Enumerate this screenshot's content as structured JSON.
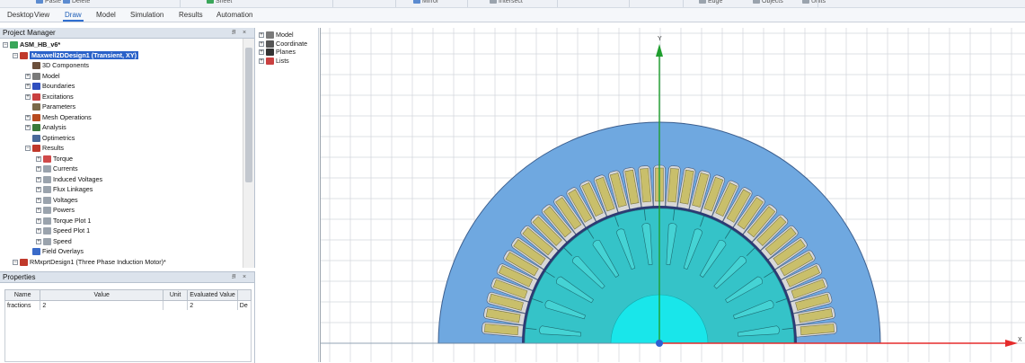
{
  "toolbar": {
    "items": [
      "Paste",
      "Delete",
      "Sheet",
      "Mirror",
      "Intersect",
      "Edge",
      "Objects",
      "Units"
    ]
  },
  "ribbon": {
    "tabs": [
      "Desktop",
      "View",
      "Draw",
      "Model",
      "Simulation",
      "Results",
      "Automation"
    ],
    "active": "Draw"
  },
  "project_manager": {
    "title": "Project Manager",
    "pin": "⭿",
    "close": "×",
    "tree": [
      {
        "label": "ASM_HB_v6*",
        "level": 0,
        "exp": "−",
        "icon": "#3aa65a",
        "bold": true
      },
      {
        "label": "Maxwell2DDesign1 (Transient, XY)",
        "level": 1,
        "exp": "−",
        "icon": "#c0392b",
        "selected": true
      },
      {
        "label": "3D Components",
        "level": 2,
        "icon": "#6b4f3b"
      },
      {
        "label": "Model",
        "level": 2,
        "exp": "+",
        "icon": "#7a7a7a"
      },
      {
        "label": "Boundaries",
        "level": 2,
        "exp": "+",
        "icon": "#2f4fbf"
      },
      {
        "label": "Excitations",
        "level": 2,
        "exp": "+",
        "icon": "#c94040"
      },
      {
        "label": "Parameters",
        "level": 2,
        "icon": "#7a6a4a"
      },
      {
        "label": "Mesh Operations",
        "level": 2,
        "exp": "+",
        "icon": "#b84b20"
      },
      {
        "label": "Analysis",
        "level": 2,
        "exp": "+",
        "icon": "#3a7a3a"
      },
      {
        "label": "Optimetrics",
        "level": 2,
        "icon": "#4a6a9a"
      },
      {
        "label": "Results",
        "level": 2,
        "exp": "−",
        "icon": "#c0392b"
      },
      {
        "label": "Torque",
        "level": 3,
        "exp": "+",
        "icon": "#d04a4a"
      },
      {
        "label": "Currents",
        "level": 3,
        "exp": "+",
        "icon": "#9aa3ad"
      },
      {
        "label": "Induced Voltages",
        "level": 3,
        "exp": "+",
        "icon": "#9aa3ad"
      },
      {
        "label": "Flux Linkages",
        "level": 3,
        "exp": "+",
        "icon": "#9aa3ad"
      },
      {
        "label": "Voltages",
        "level": 3,
        "exp": "+",
        "icon": "#9aa3ad"
      },
      {
        "label": "Powers",
        "level": 3,
        "exp": "+",
        "icon": "#9aa3ad"
      },
      {
        "label": "Torque Plot 1",
        "level": 3,
        "exp": "+",
        "icon": "#9aa3ad"
      },
      {
        "label": "Speed Plot 1",
        "level": 3,
        "exp": "+",
        "icon": "#9aa3ad"
      },
      {
        "label": "Speed",
        "level": 3,
        "exp": "+",
        "icon": "#9aa3ad"
      },
      {
        "label": "Field Overlays",
        "level": 2,
        "icon": "#3a6bc9"
      },
      {
        "label": "RMxprtDesign1 (Three Phase Induction Motor)*",
        "level": 1,
        "exp": "−",
        "icon": "#c0392b"
      }
    ]
  },
  "properties": {
    "title": "Properties",
    "pin": "⭿",
    "close": "×",
    "columns": [
      "Name",
      "Value",
      "Unit",
      "Evaluated Value",
      ""
    ],
    "rows": [
      {
        "name": "fractions",
        "value": "2",
        "unit": "",
        "evaluated": "2",
        "extra": "De"
      }
    ]
  },
  "model_tree": {
    "items": [
      {
        "label": "Model",
        "exp": "+",
        "icon": "#7a7a7a"
      },
      {
        "label": "Coordinate",
        "exp": "+",
        "icon": "#555555"
      },
      {
        "label": "Planes",
        "exp": "+",
        "icon": "#333333"
      },
      {
        "label": "Lists",
        "exp": "+",
        "icon": "#c94040"
      }
    ]
  },
  "canvas": {
    "y_axis_label": "Y",
    "x_axis_label": "X",
    "stator_color": "#6fa8e0",
    "stator_outline": "#3c5f8f",
    "slot_color": "#d8d8d8",
    "winding_color": "#c9bf6b",
    "rotor_color": "#35c3c8",
    "rotor_bar_color": "#45d3d4",
    "shaft_color": "#19e6ea",
    "airgap_color": "#2d3a73",
    "grid_color": "#d2d6dc",
    "y_axis_color": "#1f9e2e",
    "x_axis_color": "#e52b2b"
  }
}
